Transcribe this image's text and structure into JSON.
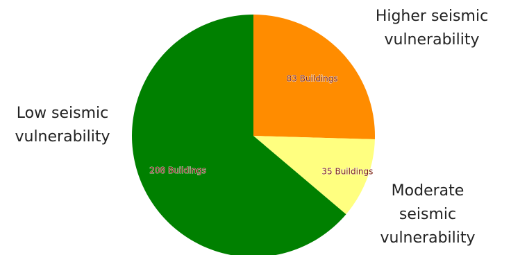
{
  "chart_data": {
    "type": "pie",
    "slices": [
      {
        "label_lines": [
          "Higher seismic",
          "vulnerability"
        ],
        "value": 83,
        "value_label": "83 Buildings",
        "color": "#FF8C00"
      },
      {
        "label_lines": [
          "Moderate",
          "seismic",
          "vulnerability"
        ],
        "value": 35,
        "value_label": "35 Buildings",
        "color": "#FFFF80"
      },
      {
        "label_lines": [
          "Low seismic",
          "vulnerability"
        ],
        "value": 208,
        "value_label": "208 Buildings",
        "color": "#008000"
      }
    ],
    "start_angle_deg": 0,
    "direction": "clockwise"
  }
}
